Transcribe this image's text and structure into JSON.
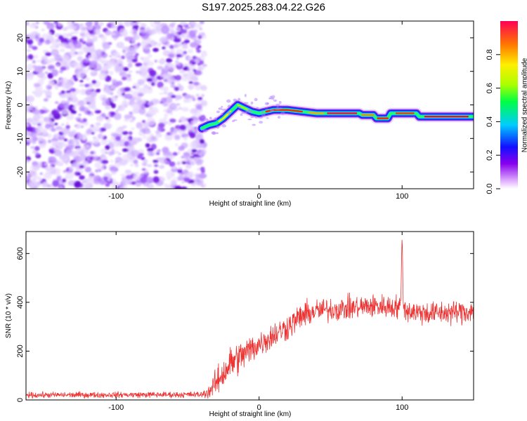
{
  "chart_data": [
    {
      "type": "heatmap",
      "title": "S197.2025.283.04.22.G26",
      "xlabel": "Height of straight line (km)",
      "ylabel": "Frequency (Hz)",
      "xlim": [
        -163,
        150
      ],
      "ylim": [
        -25,
        25
      ],
      "xticks": [
        -100,
        0,
        100
      ],
      "yticks": [
        -20,
        -10,
        0,
        10,
        20
      ],
      "colorbar": {
        "label": "Normalized spectral amplitude",
        "range": [
          0,
          1
        ],
        "ticks": [
          0.0,
          0.2,
          0.4,
          0.6,
          0.8
        ],
        "tick_labels": [
          "0.0",
          "0.2",
          "0.4",
          "0.6",
          "0.8"
        ]
      },
      "noise_region": {
        "x_from": -163,
        "x_to": -40
      },
      "ridge": {
        "x": [
          -40,
          -35,
          -30,
          -25,
          -20,
          -15,
          -10,
          -5,
          0,
          10,
          20,
          30,
          40,
          50,
          60,
          70,
          72,
          80,
          82,
          90,
          92,
          95,
          100,
          110,
          112,
          120,
          130,
          140,
          150
        ],
        "freq": [
          -7,
          -6,
          -5.5,
          -4,
          -2,
          0,
          -1,
          -2,
          -2.5,
          -1.5,
          -1.5,
          -2,
          -2.5,
          -2.5,
          -2.5,
          -2.5,
          -3,
          -3,
          -4,
          -4,
          -2.5,
          -2.5,
          -2.5,
          -2.5,
          -3.5,
          -3.5,
          -3.5,
          -3.5,
          -3.5
        ]
      }
    },
    {
      "type": "line",
      "xlabel": "Height of straight line (km)",
      "ylabel": "SNR (10 * v/v)",
      "xlim": [
        -163,
        150
      ],
      "ylim": [
        0,
        690
      ],
      "xticks": [
        -100,
        0,
        100
      ],
      "yticks": [
        0,
        200,
        400,
        600
      ],
      "series": [
        {
          "name": "SNR",
          "color": "#ee3333",
          "envelope": {
            "x": [
              -163,
              -40,
              -35,
              -30,
              -25,
              -20,
              -15,
              -10,
              0,
              10,
              20,
              30,
              40,
              60,
              80,
              99,
              100,
              101,
              110,
              120,
              140,
              150
            ],
            "mean": [
              20,
              22,
              35,
              70,
              110,
              150,
              170,
              190,
              230,
              265,
              300,
              345,
              365,
              375,
              385,
              380,
              680,
              370,
              360,
              355,
              360,
              365
            ],
            "spread": [
              10,
              10,
              25,
              45,
              55,
              60,
              55,
              55,
              45,
              45,
              45,
              45,
              40,
              40,
              40,
              40,
              10,
              40,
              40,
              40,
              40,
              40
            ]
          }
        }
      ]
    }
  ]
}
